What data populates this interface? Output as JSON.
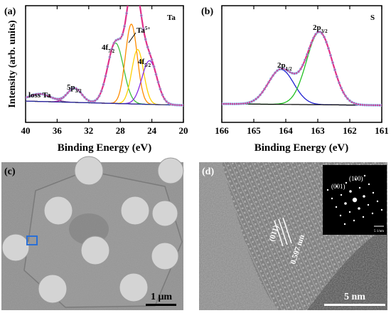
{
  "panels": {
    "a": {
      "letter": "(a)",
      "element": "Ta",
      "peak_labels": [
        {
          "base": "loss Ta",
          "sub": "",
          "sup": ""
        },
        {
          "base": "5p",
          "sub": "3/2",
          "sup": ""
        },
        {
          "base": "4f",
          "sub": "7/2",
          "sup": ""
        },
        {
          "base": "Ta",
          "sub": "",
          "sup": "5+"
        },
        {
          "base": "4f",
          "sub": "5/2",
          "sup": ""
        }
      ]
    },
    "b": {
      "letter": "(b)",
      "element": "S",
      "peak_labels": [
        {
          "base": "2p",
          "sub": "1/2",
          "sup": ""
        },
        {
          "base": "2p",
          "sub": "3/2",
          "sup": ""
        }
      ]
    },
    "c": {
      "letter": "(c)",
      "scale_bar": "1 μm"
    },
    "d": {
      "letter": "(d)",
      "scale_bar": "5 nm",
      "lattice_plane": "(011)",
      "d_spacing": "0.597 nm",
      "fft_labels": [
        "(001)",
        "(100)"
      ],
      "fft_scale": "5 1/nm"
    }
  },
  "colors": {
    "envelope": "#e0308a",
    "data_points": "#8fb4e6",
    "background": "#1a2a9a",
    "ta_loss": "#7a3c96",
    "ta_5p": "#d0208a",
    "ta_f72": "#3cc03c",
    "ta_f52": "#8a2be2",
    "ta5_a": "#ff8c00",
    "ta5_b": "#ffd000",
    "s_p12": "#2020d0",
    "s_p32": "#20c020",
    "s_bg": "#000000"
  },
  "chart_data": [
    {
      "type": "line",
      "panel": "a",
      "xlabel": "Binding Energy (eV)",
      "ylabel": "Intensity (arb. units)",
      "xlim": [
        40,
        20
      ],
      "x_ticks": [
        40,
        36,
        32,
        28,
        24,
        20
      ],
      "x_reversed": true,
      "y_ticks_shown": false,
      "peaks": [
        {
          "label": "loss Ta",
          "center": 38.2,
          "height": 0.09,
          "width": 1.4
        },
        {
          "label": "5p3/2",
          "center": 33.8,
          "height": 0.17,
          "width": 0.9
        },
        {
          "label": "4f7/2",
          "center": 28.6,
          "height": 0.72,
          "width": 1.0
        },
        {
          "label": "Ta5+",
          "center": 26.6,
          "height": 0.95,
          "width": 0.75
        },
        {
          "label": "Ta5+",
          "center": 25.8,
          "height": 0.65,
          "width": 0.75
        },
        {
          "label": "4f5/2",
          "center": 24.3,
          "height": 0.52,
          "width": 0.95
        }
      ],
      "background": {
        "start": 0.05,
        "end": 0.0
      }
    },
    {
      "type": "line",
      "panel": "b",
      "xlabel": "Binding Energy (eV)",
      "ylabel": "",
      "xlim": [
        166,
        161
      ],
      "x_ticks": [
        166,
        165,
        164,
        163,
        162,
        161
      ],
      "x_reversed": true,
      "peaks": [
        {
          "label": "2p1/2",
          "center": 164.15,
          "height": 0.48,
          "width": 0.4
        },
        {
          "label": "2p3/2",
          "center": 162.95,
          "height": 1.0,
          "width": 0.4
        }
      ],
      "background": {
        "start": 0.02,
        "end": 0.0
      }
    }
  ]
}
